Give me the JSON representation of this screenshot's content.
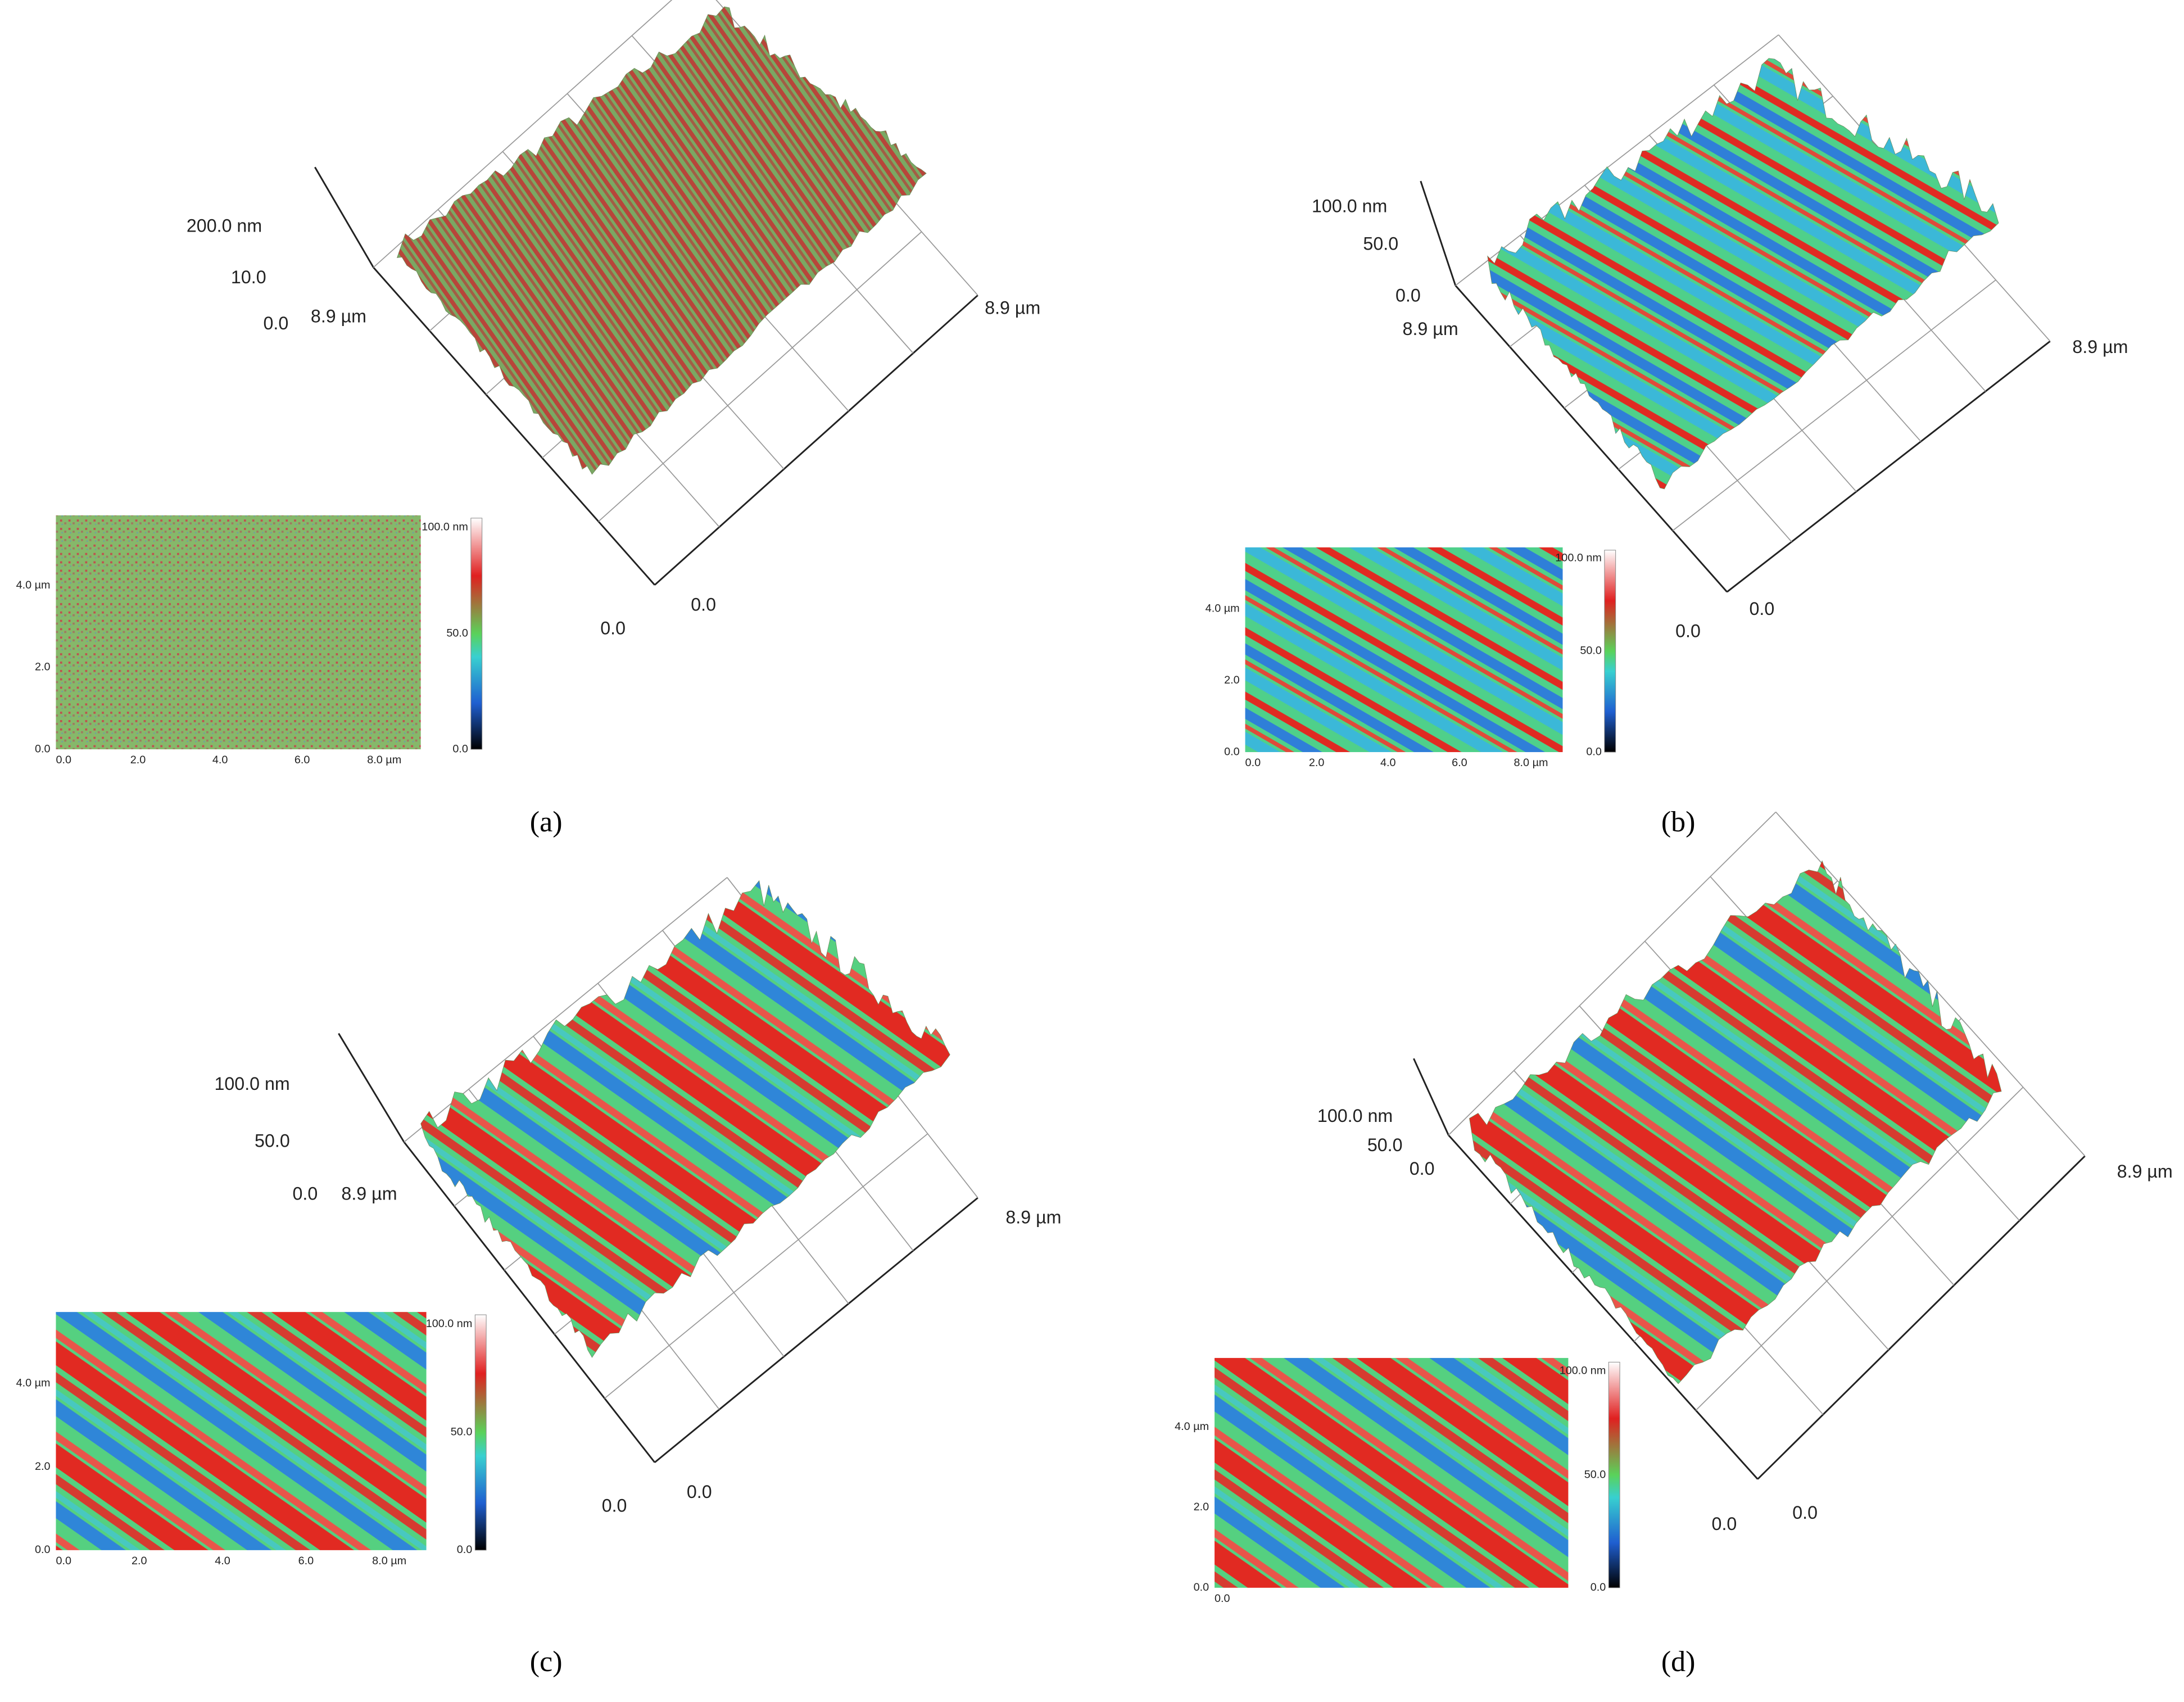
{
  "panels": [
    {
      "caption": "(a)",
      "surface": {
        "z_labels": [
          "200.0 nm",
          "10.0",
          "0.0"
        ],
        "y_end": "8.9 µm",
        "x_end": "8.9 µm",
        "origin_labels": [
          "0.0",
          "0.0"
        ]
      },
      "inset": {
        "y_ticks": [
          "4.0 µm",
          "2.0",
          "0.0"
        ],
        "x_ticks": [
          "0.0",
          "2.0",
          "4.0",
          "6.0",
          "8.0 µm"
        ],
        "colorbar": [
          "100.0 nm",
          "50.0",
          "0.0"
        ]
      }
    },
    {
      "caption": "(b)",
      "surface": {
        "z_labels": [
          "100.0 nm",
          "50.0",
          "0.0"
        ],
        "y_end": "8.9 µm",
        "x_end": "8.9 µm",
        "origin_labels": [
          "0.0",
          "0.0"
        ]
      },
      "inset": {
        "y_ticks": [
          "4.0 µm",
          "2.0",
          "0.0"
        ],
        "x_ticks": [
          "0.0",
          "2.0",
          "4.0",
          "6.0",
          "8.0 µm"
        ],
        "colorbar": [
          "100.0 nm",
          "50.0",
          "0.0"
        ]
      }
    },
    {
      "caption": "(c)",
      "surface": {
        "z_labels": [
          "100.0 nm",
          "50.0",
          "0.0"
        ],
        "y_end": "8.9 µm",
        "x_end": "8.9 µm",
        "origin_labels": [
          "0.0",
          "0.0"
        ]
      },
      "inset": {
        "y_ticks": [
          "4.0 µm",
          "2.0",
          "0.0"
        ],
        "x_ticks": [
          "0.0",
          "2.0",
          "4.0",
          "6.0",
          "8.0 µm"
        ],
        "colorbar": [
          "100.0 nm",
          "50.0",
          "0.0"
        ]
      }
    },
    {
      "caption": "(d)",
      "surface": {
        "z_labels": [
          "100.0 nm",
          "50.0",
          "0.0"
        ],
        "x_end": "8.9 µm",
        "origin_labels": [
          "0.0",
          "0.0"
        ]
      },
      "inset": {
        "y_ticks": [
          "4.0 µm",
          "2.0",
          "0.0"
        ],
        "x_ticks": [
          "0.0"
        ],
        "colorbar": [
          "100.0 nm",
          "50.0",
          "0.0"
        ]
      }
    }
  ]
}
